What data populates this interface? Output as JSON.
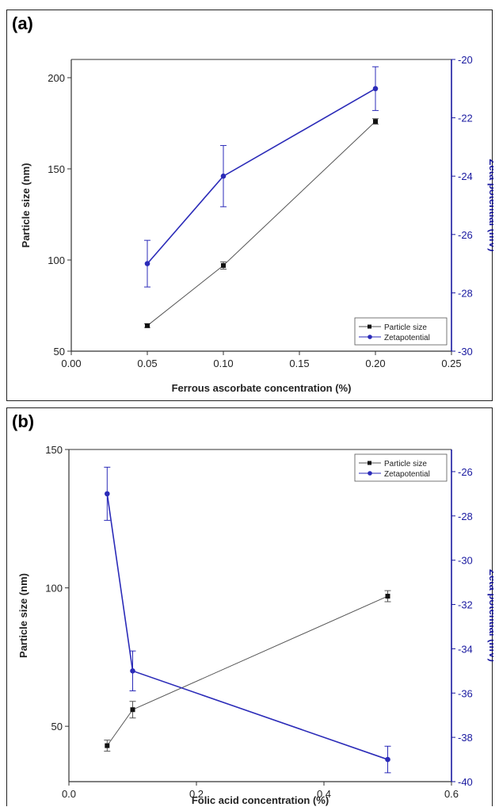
{
  "chart_data": [
    {
      "panel_label": "(a)",
      "type": "line",
      "xlabel": "Ferrous ascorbate concentration (%)",
      "ylabel": "Particle size (nm)",
      "y2label": "Zeta potential (mV)",
      "xlim": [
        0.0,
        0.25
      ],
      "ylim": [
        50,
        210
      ],
      "y2lim": [
        -30,
        -20
      ],
      "xticks": [
        0.0,
        0.05,
        0.1,
        0.15,
        0.2,
        0.25
      ],
      "xtick_labels": [
        "0.00",
        "0.05",
        "0.10",
        "0.15",
        "0.20",
        "0.25"
      ],
      "yticks": [
        50,
        100,
        150,
        200
      ],
      "ytick_labels": [
        "50",
        "100",
        "150",
        "200"
      ],
      "y2ticks": [
        -30,
        -28,
        -26,
        -24,
        -22,
        -20
      ],
      "y2tick_labels": [
        "-30",
        "-28",
        "-26",
        "-24",
        "-22",
        "-20"
      ],
      "legend_position": "bottom-right",
      "series": [
        {
          "name": "Particle size",
          "axis": "left",
          "color": "#555555",
          "marker": "square",
          "x": [
            0.05,
            0.1,
            0.2
          ],
          "y": [
            64,
            97,
            176
          ],
          "err": [
            1,
            2,
            1.5
          ]
        },
        {
          "name": "Zetapotential",
          "axis": "right",
          "color": "#2b2bb8",
          "marker": "circle",
          "x": [
            0.05,
            0.1,
            0.2
          ],
          "y": [
            -27,
            -24,
            -21
          ],
          "err": [
            0.8,
            1.05,
            0.75
          ]
        }
      ]
    },
    {
      "panel_label": "(b)",
      "type": "line",
      "xlabel": "Folic acid concentration (%)",
      "ylabel": "Particle size (nm)",
      "y2label": "Zeta potential (mV)",
      "xlim": [
        0.0,
        0.6
      ],
      "ylim": [
        30,
        150
      ],
      "y2lim": [
        -40,
        -25
      ],
      "xticks": [
        0.0,
        0.2,
        0.4,
        0.6
      ],
      "xtick_labels": [
        "0.0",
        "0.2",
        "0.4",
        "0.6"
      ],
      "yticks": [
        50,
        100,
        150
      ],
      "ytick_labels": [
        "50",
        "100",
        "150"
      ],
      "y2ticks": [
        -40,
        -38,
        -36,
        -34,
        -32,
        -30,
        -28,
        -26
      ],
      "y2tick_labels": [
        "-40",
        "-38",
        "-36",
        "-34",
        "-32",
        "-30",
        "-28",
        "-26"
      ],
      "legend_position": "top-right",
      "series": [
        {
          "name": "Particle size",
          "axis": "left",
          "color": "#555555",
          "marker": "square",
          "x": [
            0.06,
            0.1,
            0.5
          ],
          "y": [
            43,
            56,
            97
          ],
          "err": [
            2,
            3,
            2
          ]
        },
        {
          "name": "Zetapotential",
          "axis": "right",
          "color": "#2b2bb8",
          "marker": "circle",
          "x": [
            0.06,
            0.1,
            0.5
          ],
          "y": [
            -27,
            -35,
            -39
          ],
          "err": [
            1.2,
            0.9,
            0.6
          ]
        }
      ]
    }
  ]
}
